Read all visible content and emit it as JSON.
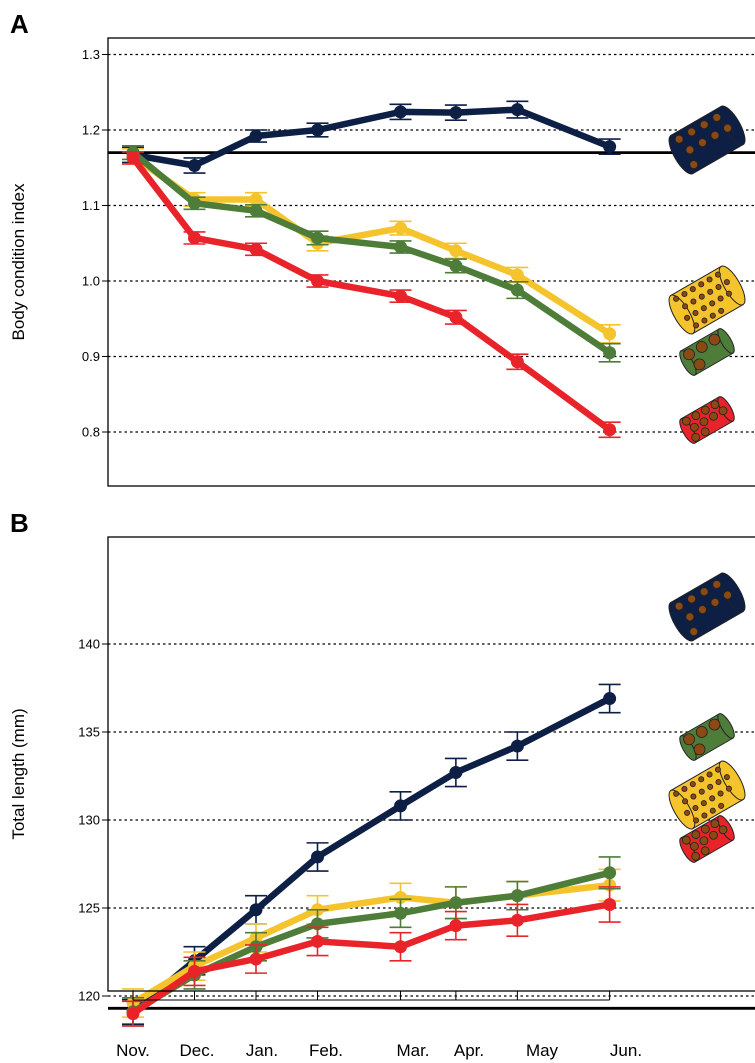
{
  "chart_data": [
    {
      "panel": "A",
      "type": "line",
      "xlabel": "",
      "ylabel": "Body condition index",
      "ylim": [
        0.73,
        1.33
      ],
      "yticks": [
        0.8,
        0.9,
        1.0,
        1.1,
        1.2,
        1.3
      ],
      "ytick_labels": [
        "0.8",
        "0.9",
        "1.0",
        "1.1",
        "1.2",
        "1.3"
      ],
      "grid": "horizontal dotted",
      "reference_line": 1.17,
      "legend": "right-side food pellet icons",
      "series": [
        {
          "color": "#0d1f45",
          "x": [
            0,
            2,
            4,
            6,
            8.7,
            10.5,
            12.5,
            15.5
          ],
          "values": [
            1.167,
            1.153,
            1.192,
            1.2,
            1.224,
            1.223,
            1.227,
            1.178
          ],
          "err": [
            0.01,
            0.01,
            0.008,
            0.009,
            0.01,
            0.01,
            0.011,
            0.01
          ]
        },
        {
          "color": "#f5c42c",
          "x": [
            0,
            2,
            4,
            6,
            8.7,
            10.5,
            12.5,
            15.5
          ],
          "values": [
            1.165,
            1.108,
            1.108,
            1.05,
            1.07,
            1.04,
            1.008,
            0.93
          ],
          "err": [
            0.01,
            0.009,
            0.009,
            0.01,
            0.009,
            0.01,
            0.01,
            0.012
          ]
        },
        {
          "color": "#4e7d3a",
          "x": [
            0,
            2,
            4,
            6,
            8.7,
            10.5,
            12.5,
            15.5
          ],
          "values": [
            1.17,
            1.103,
            1.093,
            1.057,
            1.045,
            1.02,
            0.988,
            0.905
          ],
          "err": [
            0.009,
            0.008,
            0.008,
            0.009,
            0.008,
            0.009,
            0.011,
            0.012
          ]
        },
        {
          "color": "#e8242a",
          "x": [
            0,
            2,
            4,
            6,
            8.7,
            10.5,
            12.5,
            15.5
          ],
          "values": [
            1.163,
            1.057,
            1.042,
            1.0,
            0.98,
            0.952,
            0.893,
            0.803
          ],
          "err": [
            0.008,
            0.008,
            0.008,
            0.008,
            0.008,
            0.009,
            0.01,
            0.01
          ]
        }
      ]
    },
    {
      "panel": "B",
      "type": "line",
      "xlabel": "",
      "ylabel": "Total length (mm)",
      "ylim": [
        114,
        141
      ],
      "yticks": [
        115,
        120,
        125,
        130,
        135,
        140
      ],
      "ytick_labels": [
        "115",
        "120",
        "125",
        "130",
        "135",
        "140"
      ],
      "grid": "horizontal dotted",
      "reference_line": 119.3,
      "legend": "right-side food pellet icons",
      "series": [
        {
          "color": "#0d1f45",
          "x": [
            0,
            2,
            4,
            6,
            8.7,
            10.5,
            12.5,
            15.5
          ],
          "values": [
            119.1,
            122.0,
            124.9,
            127.9,
            130.8,
            132.7,
            134.2,
            136.9
          ],
          "err": [
            0.7,
            0.8,
            0.8,
            0.8,
            0.8,
            0.8,
            0.8,
            0.8
          ]
        },
        {
          "color": "#f5c42c",
          "x": [
            0,
            2,
            4,
            6,
            8.7,
            10.5,
            12.5,
            15.5
          ],
          "values": [
            119.6,
            121.7,
            123.3,
            124.9,
            125.6,
            125.3,
            125.7,
            126.3
          ],
          "err": [
            0.8,
            0.8,
            0.8,
            0.8,
            0.8,
            0.9,
            0.8,
            0.9
          ]
        },
        {
          "color": "#4e7d3a",
          "x": [
            0,
            2,
            4,
            6,
            8.7,
            10.5,
            12.5,
            15.5
          ],
          "values": [
            119.1,
            121.2,
            122.8,
            124.1,
            124.7,
            125.3,
            125.7,
            127.0
          ],
          "err": [
            0.8,
            0.8,
            0.8,
            0.8,
            0.8,
            0.9,
            0.8,
            0.9
          ]
        },
        {
          "color": "#e8242a",
          "x": [
            0,
            2,
            4,
            6,
            8.7,
            10.5,
            12.5,
            15.5
          ],
          "values": [
            119.0,
            121.4,
            122.1,
            123.1,
            122.8,
            124.0,
            124.3,
            125.2
          ],
          "err": [
            0.7,
            0.8,
            0.8,
            0.8,
            0.8,
            0.8,
            0.9,
            1.0
          ]
        }
      ]
    }
  ],
  "month_labels": [
    "Nov.",
    "Dec.",
    "Jan.",
    "Feb.",
    "Mar.",
    "Apr.",
    "May",
    "Jun."
  ],
  "panel_labels": [
    "A",
    "B"
  ],
  "icon_colors": {
    "navy": "#0d1f45",
    "yellow": "#f5c42c",
    "green": "#4e7d3a",
    "red": "#e8242a",
    "pellet": "#8b4a14"
  }
}
